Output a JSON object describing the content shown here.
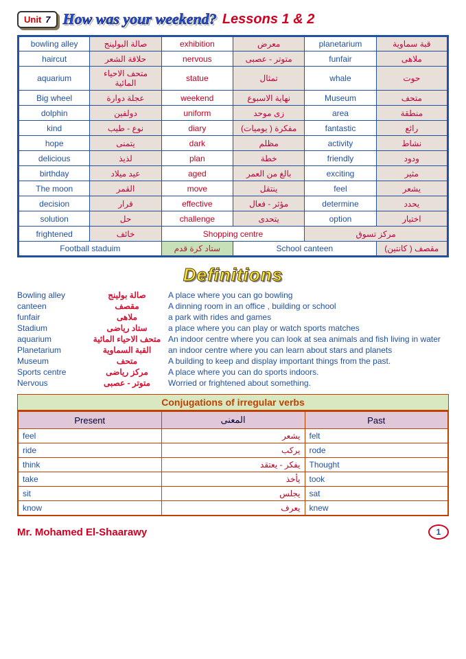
{
  "header": {
    "unit_label": "Unit",
    "unit_num": "7",
    "title": "How was your weekend?",
    "lessons": "Lessons 1 & 2"
  },
  "vocab_rows": [
    [
      "bowling alley",
      "صالة البولينج",
      "exhibition",
      "معرض",
      "planetarium",
      "قبة سماوية"
    ],
    [
      "haircut",
      "حلاقة الشعر",
      "nervous",
      "متوتر - عصبى",
      "funfair",
      "ملاهى"
    ],
    [
      "aquarium",
      "متحف الاحياء المائية",
      "statue",
      "تمثال",
      "whale",
      "حوت"
    ],
    [
      "Big wheel",
      "عجلة دوارة",
      "weekend",
      "نهاية الاسبوع",
      "Museum",
      "متحف"
    ],
    [
      "dolphin",
      "دولفين",
      "uniform",
      "زى موحد",
      "area",
      "منطقة"
    ],
    [
      "kind",
      "نوع - طيب",
      "diary",
      "مفكرة ( يوميات)",
      "fantastic",
      "رائع"
    ],
    [
      "hope",
      "يتمنى",
      "dark",
      "مظلم",
      "activity",
      "نشاط"
    ],
    [
      "delicious",
      "لذيذ",
      "plan",
      "خطة",
      "friendly",
      "ودود"
    ],
    [
      "birthday",
      "عيد ميلاد",
      "aged",
      "بالغ من العمر",
      "exciting",
      "مثير"
    ],
    [
      "The moon",
      "القمر",
      "move",
      "ينتقل",
      "feel",
      "يشعر"
    ],
    [
      "decision",
      "قرار",
      "effective",
      "مؤثر - فعال",
      "determine",
      "يحدد"
    ],
    [
      "solution",
      "حل",
      "challenge",
      "يتحدى",
      "option",
      "اختيار"
    ],
    [
      "frightened",
      "خائف",
      "Shopping centre",
      "",
      "مركز تسوق",
      ""
    ]
  ],
  "vocab_last": {
    "c1": "Football staduim",
    "c2": "ستاد كرة قدم",
    "c3": "School canteen",
    "c4": "مقصف ( كانتين)"
  },
  "def_title": "Definitions",
  "definitions": [
    {
      "term": "Bowling alley",
      "ar": "صالة بولينج",
      "desc": "A place where you can go bowling"
    },
    {
      "term": "canteen",
      "ar": "مقصف",
      "desc": "A dinning room in an office , building or school"
    },
    {
      "term": "funfair",
      "ar": "ملاهى",
      "desc": "a park with rides and games"
    },
    {
      "term": "Stadium",
      "ar": "ستاد رياضى",
      "desc": "a place where you can play or watch sports matches"
    },
    {
      "term": "aquarium",
      "ar": "متحف الاحياء المائية",
      "desc": "An indoor centre where you can look at sea animals and fish living in water"
    },
    {
      "term": "Planetarium",
      "ar": "القبة السماوية",
      "desc": "an indoor centre where you can learn about stars  and planets"
    },
    {
      "term": "Museum",
      "ar": "متحف",
      "desc": "A building to keep and display important things from the past."
    },
    {
      "term": "Sports centre",
      "ar": "مركز رياضى",
      "desc": "A place where you can do sports indoors."
    },
    {
      "term": "Nervous",
      "ar": "متوتر - عصبى",
      "desc": "Worried or frightened about something."
    }
  ],
  "conj_title": "Conjugations of irregular verbs",
  "conj_headers": {
    "present": "Present",
    "meaning": "المعنى",
    "past": "Past"
  },
  "conj_rows": [
    {
      "p": "feel",
      "m": "يشعر",
      "past": "felt"
    },
    {
      "p": "ride",
      "m": "يركب",
      "past": "rode"
    },
    {
      "p": "think",
      "m": "يفكر - يعتقد",
      "past": "Thought"
    },
    {
      "p": "take",
      "m": "يأخذ",
      "past": "took"
    },
    {
      "p": "sit",
      "m": "يجلس",
      "past": "sat"
    },
    {
      "p": "know",
      "m": "يعرف",
      "past": "knew"
    }
  ],
  "footer": {
    "author": "Mr. Mohamed El-Shaarawy",
    "page": "1"
  }
}
